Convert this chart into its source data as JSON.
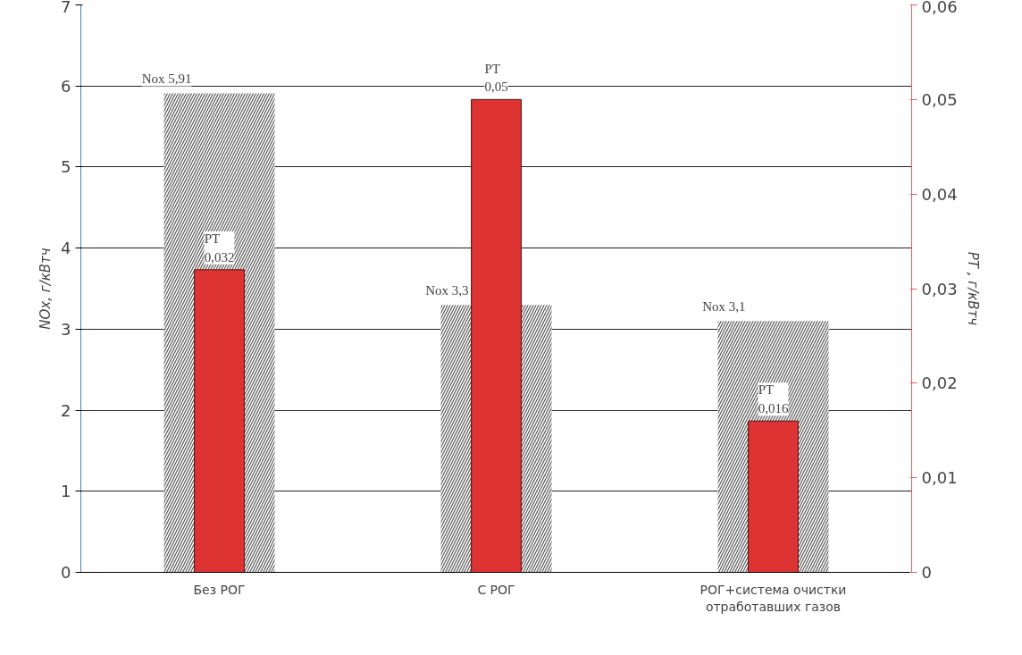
{
  "chart_data": {
    "type": "bar",
    "categories": [
      "Без РОГ",
      "С РОГ",
      "РОГ+система очистки отработавших газов"
    ],
    "ylabel": "NOx, г/кВтч",
    "y2label": "PT , г/кВтч",
    "ylim": [
      0,
      7
    ],
    "yticks": [
      0,
      1,
      2,
      3,
      4,
      5,
      6,
      7
    ],
    "y2lim": [
      0,
      0.06
    ],
    "y2ticks": [
      0,
      {
        "value": 0.01,
        "label": "0,01"
      },
      {
        "value": 0.02,
        "label": "0,02"
      },
      {
        "value": 0.03,
        "label": "0,03"
      },
      {
        "value": 0.04,
        "label": "0,04"
      },
      {
        "value": 0.05,
        "label": "0,05"
      },
      {
        "value": 0.06,
        "label": "0,06"
      }
    ],
    "grid": "y",
    "series": [
      {
        "color": "#555555",
        "values": [
          5.91,
          3.3,
          3.1
        ],
        "value_labels": [
          "Nox 5,91",
          "Nox 3,3",
          "Nox 3,1"
        ]
      },
      {
        "color": "#dd3333",
        "values": [
          0.032,
          0.05,
          0.016
        ],
        "axis": "y2",
        "value_labels": [
          "PT\n0,032",
          "PT\n0,05",
          "PT\n0,016"
        ]
      }
    ]
  }
}
